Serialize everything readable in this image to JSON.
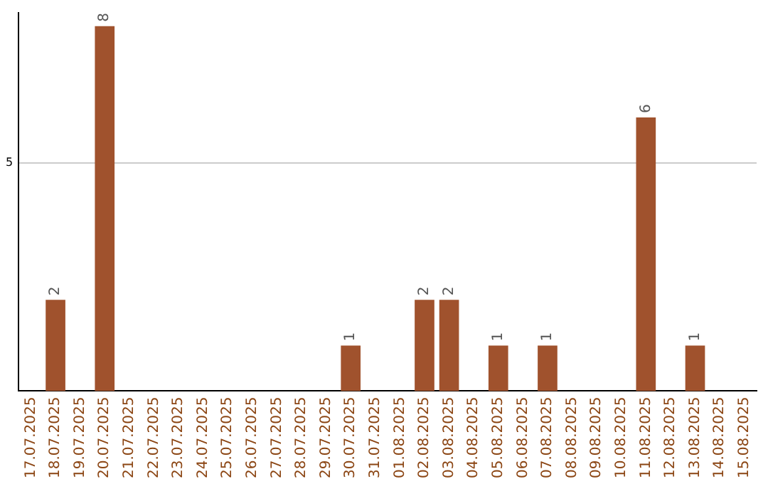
{
  "chart_data": {
    "type": "bar",
    "categories": [
      "17.07.2025",
      "18.07.2025",
      "19.07.2025",
      "20.07.2025",
      "21.07.2025",
      "22.07.2025",
      "23.07.2025",
      "24.07.2025",
      "25.07.2025",
      "26.07.2025",
      "27.07.2025",
      "28.07.2025",
      "29.07.2025",
      "30.07.2025",
      "31.07.2025",
      "01.08.2025",
      "02.08.2025",
      "03.08.2025",
      "04.08.2025",
      "05.08.2025",
      "06.08.2025",
      "07.08.2025",
      "08.08.2025",
      "09.08.2025",
      "10.08.2025",
      "11.08.2025",
      "12.08.2025",
      "13.08.2025",
      "14.08.2025",
      "15.08.2025"
    ],
    "values": [
      0,
      2,
      0,
      8,
      0,
      0,
      0,
      0,
      0,
      0,
      0,
      0,
      0,
      1,
      0,
      0,
      2,
      2,
      0,
      1,
      0,
      1,
      0,
      0,
      0,
      6,
      0,
      1,
      0,
      0
    ],
    "value_labels": [
      null,
      "2",
      null,
      "8",
      null,
      null,
      null,
      null,
      null,
      null,
      null,
      null,
      null,
      "1",
      null,
      null,
      "2",
      "2",
      null,
      "1",
      null,
      "1",
      null,
      null,
      null,
      "6",
      null,
      "1",
      null,
      null
    ],
    "color": "#a0522d",
    "ylim": [
      0,
      8.3
    ],
    "yticks": [
      5
    ],
    "grid": "y",
    "legend": false
  }
}
